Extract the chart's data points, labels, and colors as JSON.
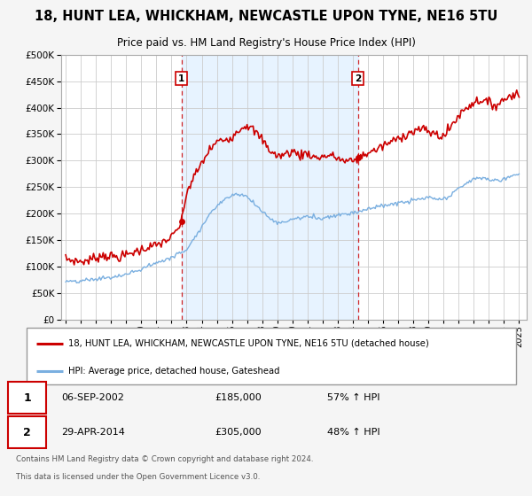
{
  "title": "18, HUNT LEA, WHICKHAM, NEWCASTLE UPON TYNE, NE16 5TU",
  "subtitle": "Price paid vs. HM Land Registry's House Price Index (HPI)",
  "legend_line1": "18, HUNT LEA, WHICKHAM, NEWCASTLE UPON TYNE, NE16 5TU (detached house)",
  "legend_line2": "HPI: Average price, detached house, Gateshead",
  "transaction1_date": "06-SEP-2002",
  "transaction1_price": "£185,000",
  "transaction1_hpi": "57% ↑ HPI",
  "transaction2_date": "29-APR-2014",
  "transaction2_price": "£305,000",
  "transaction2_hpi": "48% ↑ HPI",
  "footnote1": "Contains HM Land Registry data © Crown copyright and database right 2024.",
  "footnote2": "This data is licensed under the Open Government Licence v3.0.",
  "red_color": "#cc0000",
  "blue_color": "#7aafe0",
  "shade_color": "#ddeeff",
  "background_color": "#f5f5f5",
  "plot_bg_color": "#ffffff",
  "grid_color": "#cccccc",
  "ylim": [
    0,
    500000
  ],
  "yticks": [
    0,
    50000,
    100000,
    150000,
    200000,
    250000,
    300000,
    350000,
    400000,
    450000,
    500000
  ],
  "transaction1_year": 2002.67,
  "transaction1_value": 185000,
  "transaction2_year": 2014.33,
  "transaction2_value": 305000,
  "vline1_year": 2002.67,
  "vline2_year": 2014.33,
  "red_keypoints": [
    [
      1995.0,
      115000
    ],
    [
      1995.5,
      112000
    ],
    [
      1996.0,
      110000
    ],
    [
      1996.5,
      112000
    ],
    [
      1997.0,
      118000
    ],
    [
      1997.5,
      122000
    ],
    [
      1998.0,
      120000
    ],
    [
      1998.5,
      118000
    ],
    [
      1999.0,
      122000
    ],
    [
      1999.5,
      128000
    ],
    [
      2000.0,
      132000
    ],
    [
      2000.5,
      138000
    ],
    [
      2001.0,
      140000
    ],
    [
      2001.5,
      148000
    ],
    [
      2002.0,
      155000
    ],
    [
      2002.5,
      175000
    ],
    [
      2002.67,
      185000
    ],
    [
      2003.0,
      240000
    ],
    [
      2003.5,
      270000
    ],
    [
      2004.0,
      295000
    ],
    [
      2004.5,
      320000
    ],
    [
      2005.0,
      335000
    ],
    [
      2005.5,
      340000
    ],
    [
      2006.0,
      345000
    ],
    [
      2006.5,
      360000
    ],
    [
      2007.0,
      368000
    ],
    [
      2007.5,
      355000
    ],
    [
      2008.0,
      340000
    ],
    [
      2008.5,
      320000
    ],
    [
      2009.0,
      308000
    ],
    [
      2009.5,
      312000
    ],
    [
      2010.0,
      318000
    ],
    [
      2010.5,
      310000
    ],
    [
      2011.0,
      315000
    ],
    [
      2011.5,
      305000
    ],
    [
      2012.0,
      308000
    ],
    [
      2012.5,
      310000
    ],
    [
      2013.0,
      305000
    ],
    [
      2013.5,
      298000
    ],
    [
      2014.0,
      300000
    ],
    [
      2014.33,
      305000
    ],
    [
      2014.5,
      308000
    ],
    [
      2015.0,
      315000
    ],
    [
      2015.5,
      320000
    ],
    [
      2016.0,
      328000
    ],
    [
      2016.5,
      335000
    ],
    [
      2017.0,
      342000
    ],
    [
      2017.5,
      350000
    ],
    [
      2018.0,
      355000
    ],
    [
      2018.5,
      360000
    ],
    [
      2019.0,
      355000
    ],
    [
      2019.5,
      350000
    ],
    [
      2020.0,
      345000
    ],
    [
      2020.5,
      365000
    ],
    [
      2021.0,
      385000
    ],
    [
      2021.5,
      400000
    ],
    [
      2022.0,
      410000
    ],
    [
      2022.5,
      415000
    ],
    [
      2023.0,
      408000
    ],
    [
      2023.5,
      405000
    ],
    [
      2024.0,
      415000
    ],
    [
      2024.5,
      425000
    ],
    [
      2025.0,
      425000
    ]
  ],
  "blue_keypoints": [
    [
      1995.0,
      73000
    ],
    [
      1995.5,
      71000
    ],
    [
      1996.0,
      73000
    ],
    [
      1996.5,
      75000
    ],
    [
      1997.0,
      77000
    ],
    [
      1997.5,
      79000
    ],
    [
      1998.0,
      80000
    ],
    [
      1998.5,
      82000
    ],
    [
      1999.0,
      86000
    ],
    [
      1999.5,
      90000
    ],
    [
      2000.0,
      96000
    ],
    [
      2000.5,
      102000
    ],
    [
      2001.0,
      108000
    ],
    [
      2001.5,
      112000
    ],
    [
      2002.0,
      118000
    ],
    [
      2002.5,
      125000
    ],
    [
      2003.0,
      133000
    ],
    [
      2003.5,
      155000
    ],
    [
      2004.0,
      175000
    ],
    [
      2004.5,
      198000
    ],
    [
      2005.0,
      215000
    ],
    [
      2005.5,
      228000
    ],
    [
      2006.0,
      235000
    ],
    [
      2006.5,
      238000
    ],
    [
      2007.0,
      232000
    ],
    [
      2007.5,
      218000
    ],
    [
      2008.0,
      205000
    ],
    [
      2008.5,
      192000
    ],
    [
      2009.0,
      182000
    ],
    [
      2009.5,
      185000
    ],
    [
      2010.0,
      190000
    ],
    [
      2010.5,
      192000
    ],
    [
      2011.0,
      195000
    ],
    [
      2011.5,
      193000
    ],
    [
      2012.0,
      192000
    ],
    [
      2012.5,
      195000
    ],
    [
      2013.0,
      198000
    ],
    [
      2013.5,
      200000
    ],
    [
      2014.0,
      202000
    ],
    [
      2014.5,
      205000
    ],
    [
      2015.0,
      210000
    ],
    [
      2015.5,
      212000
    ],
    [
      2016.0,
      215000
    ],
    [
      2016.5,
      218000
    ],
    [
      2017.0,
      220000
    ],
    [
      2017.5,
      222000
    ],
    [
      2018.0,
      225000
    ],
    [
      2018.5,
      228000
    ],
    [
      2019.0,
      230000
    ],
    [
      2019.5,
      228000
    ],
    [
      2020.0,
      226000
    ],
    [
      2020.5,
      235000
    ],
    [
      2021.0,
      248000
    ],
    [
      2021.5,
      258000
    ],
    [
      2022.0,
      265000
    ],
    [
      2022.5,
      268000
    ],
    [
      2023.0,
      265000
    ],
    [
      2023.5,
      262000
    ],
    [
      2024.0,
      265000
    ],
    [
      2024.5,
      272000
    ],
    [
      2025.0,
      275000
    ]
  ]
}
